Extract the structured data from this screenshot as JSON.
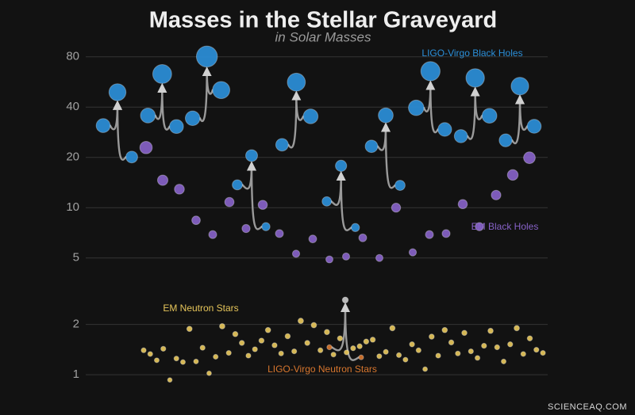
{
  "chart_data": {
    "type": "scatter",
    "title": "Masses in the Stellar Graveyard",
    "subtitle": "in Solar Masses",
    "log_scale": true,
    "grid": true,
    "ylim": [
      0.85,
      95
    ],
    "yticks": [
      1,
      2,
      5,
      10,
      20,
      40,
      80
    ],
    "watermark": "SCIENCEAQ.COM",
    "series": [
      {
        "name": "LIGO-Virgo Black Holes",
        "color": "#2b8fd9",
        "mergers": [
          {
            "components": [
              31.0,
              20.1
            ],
            "final": 49.1
          },
          {
            "components": [
              35.6,
              30.6
            ],
            "final": 63.1
          },
          {
            "components": [
              34.3,
              50.6
            ],
            "final": 80.3
          },
          {
            "components": [
              13.7,
              7.7
            ],
            "final": 20.5
          },
          {
            "components": [
              23.8,
              35.2
            ],
            "final": 56.4
          },
          {
            "components": [
              10.9,
              7.6
            ],
            "final": 17.8
          },
          {
            "components": [
              23.3,
              13.6
            ],
            "final": 35.7
          },
          {
            "components": [
              39.6,
              29.4
            ],
            "final": 65.6
          },
          {
            "components": [
              26.8,
              35.5
            ],
            "final": 59.8
          },
          {
            "components": [
              25.3,
              30.7
            ],
            "final": 53.4
          }
        ]
      },
      {
        "name": "EM Black Holes",
        "color": "#8762c8",
        "values": [
          22.9,
          14.6,
          12.9,
          8.4,
          6.9,
          10.8,
          7.5,
          10.4,
          7.0,
          5.3,
          6.5,
          4.9,
          5.1,
          6.6,
          5.0,
          10.0,
          5.4,
          6.9,
          7.0,
          10.5,
          7.7,
          11.9,
          15.7,
          19.9
        ]
      },
      {
        "name": "EM Neutron Stars",
        "color": "#e6c55a",
        "values": [
          1.4,
          1.33,
          1.22,
          1.43,
          0.93,
          1.25,
          1.19,
          1.88,
          1.2,
          1.45,
          1.02,
          1.28,
          1.95,
          1.35,
          1.75,
          1.55,
          1.3,
          1.42,
          1.6,
          1.85,
          1.5,
          1.34,
          1.7,
          1.38,
          2.1,
          1.55,
          1.98,
          1.4,
          1.8,
          1.32,
          1.65,
          1.36,
          1.44,
          1.48,
          1.58,
          1.62,
          1.29,
          1.37,
          1.9,
          1.31,
          1.23,
          1.52,
          1.4,
          1.08,
          1.69,
          1.3,
          1.85,
          1.56,
          1.34,
          1.78,
          1.38,
          1.26,
          1.49,
          1.83,
          1.46,
          1.2,
          1.52,
          1.9,
          1.33,
          1.65,
          1.41,
          1.35
        ]
      },
      {
        "name": "LIGO-Virgo Neutron Stars",
        "color": "#d7762e",
        "final_color": "#c8c8c8",
        "mergers": [
          {
            "components": [
              1.46,
              1.27
            ],
            "final": 2.8
          }
        ]
      }
    ]
  }
}
